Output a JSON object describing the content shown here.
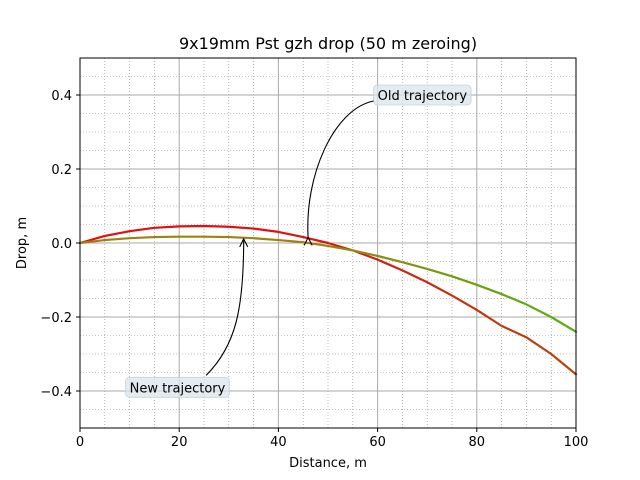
{
  "chart_data": {
    "type": "line",
    "title": "9x19mm Pst gzh drop (50 m zeroing)",
    "xlabel": "Distance, m",
    "ylabel": "Drop, m",
    "xlim": [
      0,
      100
    ],
    "ylim": [
      -0.5,
      0.5
    ],
    "xticks": [
      0,
      20,
      40,
      60,
      80,
      100
    ],
    "xtick_labels": [
      "0",
      "20",
      "40",
      "60",
      "80",
      "100"
    ],
    "yticks": [
      -0.4,
      -0.2,
      0.0,
      0.2,
      0.4
    ],
    "ytick_labels": [
      "−0.4",
      "−0.2",
      "0.0",
      "0.2",
      "0.4"
    ],
    "grid": true,
    "minor_grid": true,
    "series": [
      {
        "color": "#e01010",
        "color_end": "#b04a10",
        "x": [
          0,
          5,
          10,
          15,
          20,
          25,
          30,
          35,
          40,
          45,
          50,
          55,
          60,
          65,
          70,
          75,
          80,
          85,
          90,
          95,
          100
        ],
        "values": [
          0.0,
          0.019,
          0.032,
          0.041,
          0.045,
          0.046,
          0.044,
          0.039,
          0.03,
          0.016,
          0.0,
          -0.02,
          -0.045,
          -0.074,
          -0.106,
          -0.142,
          -0.181,
          -0.224,
          -0.255,
          -0.3,
          -0.355
        ]
      },
      {
        "color": "#a08010",
        "color_end": "#55b010",
        "x": [
          0,
          5,
          10,
          15,
          20,
          25,
          30,
          35,
          40,
          45,
          50,
          55,
          60,
          65,
          70,
          75,
          80,
          85,
          90,
          95,
          100
        ],
        "values": [
          0.0,
          0.008,
          0.013,
          0.016,
          0.017,
          0.017,
          0.016,
          0.013,
          0.008,
          0.002,
          -0.008,
          -0.02,
          -0.035,
          -0.052,
          -0.07,
          -0.09,
          -0.113,
          -0.138,
          -0.166,
          -0.2,
          -0.24
        ]
      }
    ],
    "annotations": [
      {
        "text": "Old trajectory",
        "text_xy": [
          60,
          0.4
        ],
        "point_xy": [
          46,
          0.018
        ]
      },
      {
        "text": "New trajectory",
        "text_xy": [
          10,
          -0.39
        ],
        "point_xy": [
          33,
          0.014
        ]
      }
    ]
  }
}
